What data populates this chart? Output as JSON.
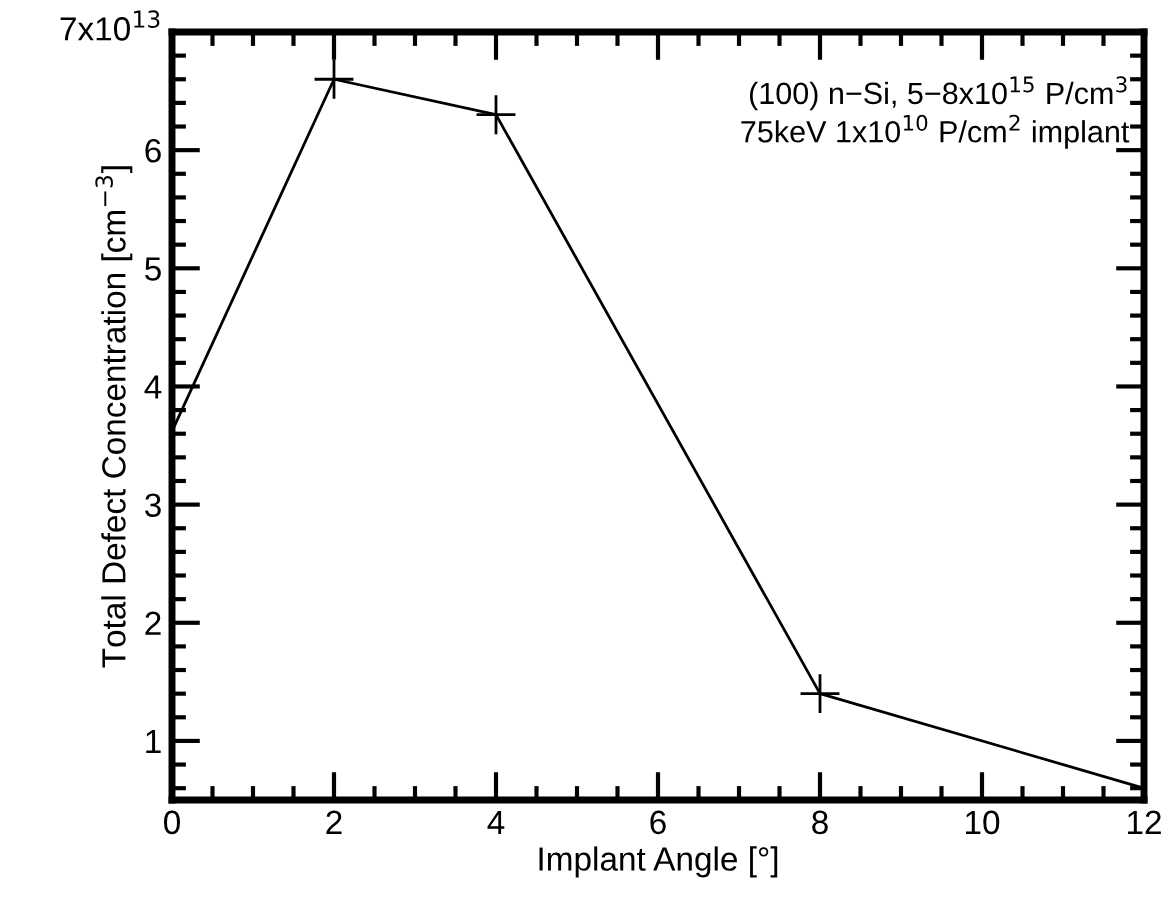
{
  "chart_data": {
    "type": "line",
    "xlabel": "Implant Angle [°]",
    "ylabel": "Total Defect Concentration [cm$^{−3}$]",
    "annotations": [
      "7x10$^{13}$",
      "(100) n−Si, 5−8x10$^{15}$ P/cm$^{3}$",
      "75keV 1x10$^{10}$ P/cm$^{2}$ implant"
    ],
    "x": [
      0,
      2,
      4,
      8,
      12
    ],
    "series": [
      {
        "color": "#000000",
        "values": [
          3.62,
          6.6,
          6.3,
          1.4,
          0.6
        ]
      }
    ],
    "marker": "cross",
    "line_style": "solid",
    "xlim": [
      0,
      12
    ],
    "xticks": [
      0,
      2,
      4,
      6,
      8,
      10,
      12
    ],
    "ylim": [
      0.5,
      7
    ],
    "yticks": [
      1,
      2,
      3,
      4,
      5,
      6,
      {
        "value": 7,
        "label": null
      }
    ],
    "grid": false,
    "legend": false
  }
}
